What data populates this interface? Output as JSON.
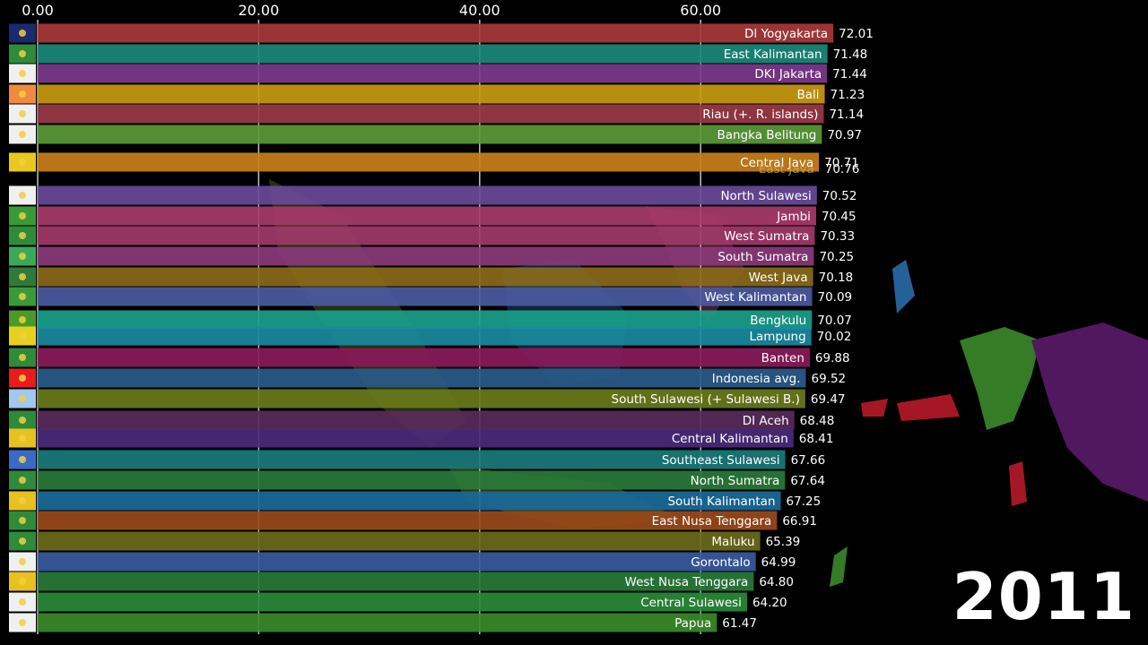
{
  "year": "2011",
  "chart_data": {
    "type": "bar",
    "orientation": "horizontal",
    "xlim": [
      0,
      72
    ],
    "ticks": [
      "0.00",
      "20.00",
      "40.00",
      "60.00"
    ],
    "tick_values": [
      0,
      20,
      40,
      60
    ],
    "grid": true,
    "rows": [
      {
        "name": "DI Yogyakarta",
        "value": 72.01,
        "label": "72.01",
        "color": "#a83a3a",
        "flag_color": "#1a2a6e"
      },
      {
        "name": "East Kalimantan",
        "value": 71.48,
        "label": "71.48",
        "color": "#1a8a7a",
        "flag_color": "#2f8a3a"
      },
      {
        "name": "DKI Jakarta",
        "value": 71.44,
        "label": "71.44",
        "color": "#7b3a8c",
        "flag_color": "#f0f0f0"
      },
      {
        "name": "Bali",
        "value": 71.23,
        "label": "71.23",
        "color": "#c89a10",
        "flag_color": "#f08a40"
      },
      {
        "name": "Riau (+. R. islands)",
        "value": 71.14,
        "label": "71.14",
        "color": "#9a3a48",
        "flag_color": "#f0f0f0"
      },
      {
        "name": "Bangka Belitung",
        "value": 70.97,
        "label": "70.97",
        "color": "#5a9a3a",
        "flag_color": "#f0f0f0"
      },
      {
        "name": "Central Java",
        "value": 70.71,
        "label": "70.71",
        "color": "#c8801a",
        "flag_color": "#e8c820"
      },
      {
        "name": "East Java",
        "value": 70.76,
        "label": "70.76",
        "color": "#c8801a",
        "flag_color": "#2f8a3a",
        "overlap": true
      },
      {
        "name": "North Sulawesi",
        "value": 70.52,
        "label": "70.52",
        "color": "#6a4a9a",
        "flag_color": "#f0f0f0"
      },
      {
        "name": "Jambi",
        "value": 70.45,
        "label": "70.45",
        "color": "#a83a6a",
        "flag_color": "#3a9a3a"
      },
      {
        "name": "West Sumatra",
        "value": 70.33,
        "label": "70.33",
        "color": "#a03a68",
        "flag_color": "#2f8a3a"
      },
      {
        "name": "South Sumatra",
        "value": 70.25,
        "label": "70.25",
        "color": "#8a3a7a",
        "flag_color": "#3aaa5a"
      },
      {
        "name": "West Java",
        "value": 70.18,
        "label": "70.18",
        "color": "#8a6a1a",
        "flag_color": "#2f7a3a"
      },
      {
        "name": "West Kalimantan",
        "value": 70.09,
        "label": "70.09",
        "color": "#4a5aa0",
        "flag_color": "#3a9a3a"
      },
      {
        "name": "Bengkulu",
        "value": 70.07,
        "label": "70.07",
        "color": "#1aa08a",
        "flag_color": "#4a9a2a"
      },
      {
        "name": "Lampung",
        "value": 70.02,
        "label": "70.02",
        "color": "#1a8aa0",
        "flag_color": "#e8d020"
      },
      {
        "name": "Banten",
        "value": 69.88,
        "label": "69.88",
        "color": "#8a1a5a",
        "flag_color": "#2f8a3a"
      },
      {
        "name": "Indonesia avg.",
        "value": 69.52,
        "label": "69.52",
        "color": "#2a5a8a",
        "flag_color": "#e81c1c"
      },
      {
        "name": "South Sulawesi (+ Sulawesi B.)",
        "value": 69.47,
        "label": "69.47",
        "color": "#6a7a1a",
        "flag_color": "#a0c8f0"
      },
      {
        "name": "DI Aceh",
        "value": 68.48,
        "label": "68.48",
        "color": "#5a2a5a",
        "flag_color": "#2f8a3a"
      },
      {
        "name": "Central Kalimantan",
        "value": 68.41,
        "label": "68.41",
        "color": "#4a2a7a",
        "flag_color": "#e8c020"
      },
      {
        "name": "Southeast Sulawesi",
        "value": 67.66,
        "label": "67.66",
        "color": "#1a7a7a",
        "flag_color": "#3a6ac8"
      },
      {
        "name": "North Sumatra",
        "value": 67.64,
        "label": "67.64",
        "color": "#2a7a3a",
        "flag_color": "#2f8a3a"
      },
      {
        "name": "South Kalimantan",
        "value": 67.25,
        "label": "67.25",
        "color": "#1a6a9a",
        "flag_color": "#e8c020"
      },
      {
        "name": "East Nusa Tenggara",
        "value": 66.91,
        "label": "66.91",
        "color": "#9a4a1a",
        "flag_color": "#2f8a3a"
      },
      {
        "name": "Maluku",
        "value": 65.39,
        "label": "65.39",
        "color": "#6a6a1a",
        "flag_color": "#2f8a3a"
      },
      {
        "name": "Gorontalo",
        "value": 64.99,
        "label": "64.99",
        "color": "#3a5aa0",
        "flag_color": "#f0f0f0"
      },
      {
        "name": "West Nusa Tenggara",
        "value": 64.8,
        "label": "64.80",
        "color": "#2a7a3a",
        "flag_color": "#e8c020"
      },
      {
        "name": "Central Sulawesi",
        "value": 64.2,
        "label": "64.20",
        "color": "#2a8a3a",
        "flag_color": "#f0f0f0"
      },
      {
        "name": "Papua",
        "value": 61.47,
        "label": "61.47",
        "color": "#3a8a2a",
        "flag_color": "#f0f0f0"
      }
    ]
  }
}
